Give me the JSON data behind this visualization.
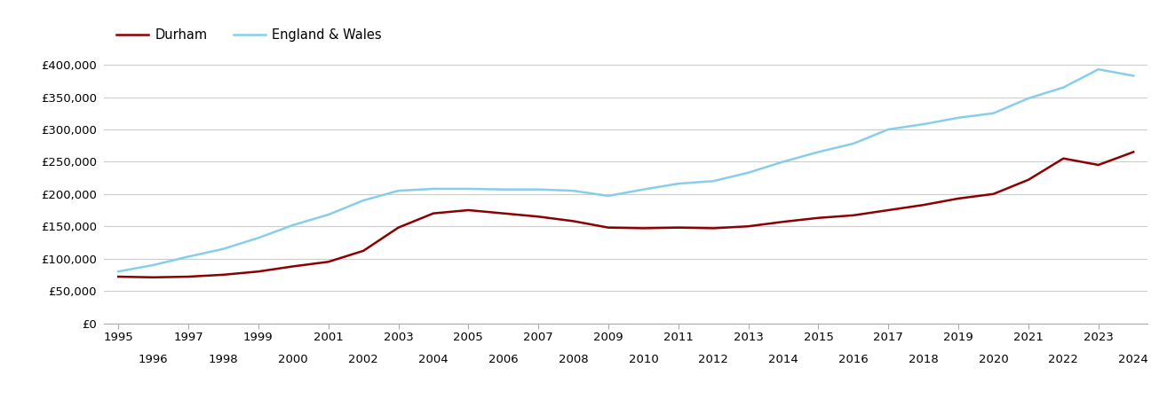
{
  "years": [
    1995,
    1996,
    1997,
    1998,
    1999,
    2000,
    2001,
    2002,
    2003,
    2004,
    2005,
    2006,
    2007,
    2008,
    2009,
    2010,
    2011,
    2012,
    2013,
    2014,
    2015,
    2016,
    2017,
    2018,
    2019,
    2020,
    2021,
    2022,
    2023,
    2024
  ],
  "durham": [
    72000,
    71000,
    72000,
    75000,
    80000,
    88000,
    95000,
    112000,
    148000,
    170000,
    175000,
    170000,
    165000,
    158000,
    148000,
    147000,
    148000,
    147000,
    150000,
    157000,
    163000,
    167000,
    175000,
    183000,
    193000,
    200000,
    222000,
    255000,
    245000,
    265000
  ],
  "england_wales": [
    80000,
    90000,
    103000,
    115000,
    132000,
    152000,
    168000,
    190000,
    205000,
    208000,
    208000,
    207000,
    207000,
    205000,
    197000,
    207000,
    216000,
    220000,
    233000,
    250000,
    265000,
    278000,
    300000,
    308000,
    318000,
    325000,
    348000,
    365000,
    393000,
    383000
  ],
  "durham_color": "#8B0000",
  "ew_color": "#87CEEB",
  "background_color": "#ffffff",
  "grid_color": "#cccccc",
  "legend_labels": [
    "Durham",
    "England & Wales"
  ],
  "yticks": [
    0,
    50000,
    100000,
    150000,
    200000,
    250000,
    300000,
    350000,
    400000
  ],
  "ylim": [
    0,
    420000
  ],
  "xlim": [
    1994.6,
    2024.4
  ]
}
